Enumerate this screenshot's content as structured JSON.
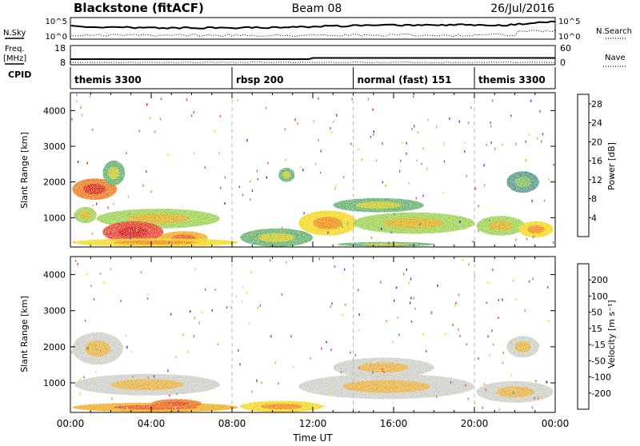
{
  "header": {
    "radar": "Blackstone (fitACF)",
    "beam": "Beam 08",
    "date": "26/Jul/2016"
  },
  "top_panels": {
    "nsky_label": "N.Sky",
    "nsky_ticks": [
      "10^5",
      "10^0"
    ],
    "nsearch_label": "N.Search",
    "nsearch_ticks": [
      "10^5",
      "10^0"
    ],
    "freq_label": "Freq.",
    "freq_unit": "[MHz]",
    "freq_ticks": [
      "18",
      "8"
    ],
    "nave_label": "Nave",
    "nave_ticks": [
      "60",
      "0"
    ],
    "cpid_label": "CPID"
  },
  "modes": [
    {
      "label": "themis 3300",
      "start_hour": 0
    },
    {
      "label": "rbsp 200",
      "start_hour": 8
    },
    {
      "label": "normal (fast) 151",
      "start_hour": 14
    },
    {
      "label": "themis 3300",
      "start_hour": 20
    }
  ],
  "time_axis": {
    "label": "Time UT",
    "ticks": [
      "00:00",
      "04:00",
      "08:00",
      "12:00",
      "16:00",
      "20:00",
      "00:00"
    ],
    "range_hours": [
      0,
      24
    ]
  },
  "chart_data": [
    {
      "type": "heatmap",
      "title": "",
      "xlabel": "",
      "ylabel": "Slant Range [km]",
      "y_ticks": [
        "1000",
        "2000",
        "3000",
        "4000"
      ],
      "xlim_hours": [
        0,
        24
      ],
      "ylim_km": [
        180,
        4500
      ],
      "colorbar": {
        "label": "Power [dB]",
        "ticks": [
          "4",
          "8",
          "12",
          "16",
          "20",
          "24",
          "28"
        ],
        "range": [
          0,
          30
        ],
        "colors": [
          "#1414e6",
          "#2f5fb4",
          "#3d8a78",
          "#4ea55a",
          "#8fcb3a",
          "#f2d200",
          "#f3a000",
          "#ee6600",
          "#e62a14",
          "#cc0000"
        ]
      },
      "regions": [
        {
          "t0": 0.1,
          "t1": 2.3,
          "r0": 1500,
          "r1": 2100,
          "level": 0.75
        },
        {
          "t0": 1.6,
          "t1": 2.7,
          "r0": 1900,
          "r1": 2600,
          "level": 0.35
        },
        {
          "t0": 0.2,
          "t1": 1.3,
          "r0": 850,
          "r1": 1300,
          "level": 0.4
        },
        {
          "t0": 1.3,
          "t1": 7.4,
          "r0": 700,
          "r1": 1250,
          "level": 0.45
        },
        {
          "t0": 1.6,
          "t1": 4.6,
          "r0": 300,
          "r1": 900,
          "level": 0.85
        },
        {
          "t0": 4.4,
          "t1": 6.8,
          "r0": 250,
          "r1": 620,
          "level": 0.7
        },
        {
          "t0": 0.1,
          "t1": 8.3,
          "r0": 190,
          "r1": 420,
          "level": 0.6
        },
        {
          "t0": 8.4,
          "t1": 12.0,
          "r0": 190,
          "r1": 700,
          "level": 0.3
        },
        {
          "t0": 10.3,
          "t1": 11.1,
          "r0": 2000,
          "r1": 2400,
          "level": 0.3
        },
        {
          "t0": 11.3,
          "t1": 14.2,
          "r0": 500,
          "r1": 1200,
          "level": 0.5
        },
        {
          "t0": 13.0,
          "t1": 17.5,
          "r0": 1150,
          "r1": 1550,
          "level": 0.35
        },
        {
          "t0": 14.0,
          "t1": 20.0,
          "r0": 550,
          "r1": 1150,
          "level": 0.4
        },
        {
          "t0": 20.1,
          "t1": 22.5,
          "r0": 500,
          "r1": 1050,
          "level": 0.45
        },
        {
          "t0": 22.2,
          "t1": 23.9,
          "r0": 450,
          "r1": 900,
          "level": 0.55
        },
        {
          "t0": 21.6,
          "t1": 23.2,
          "r0": 1700,
          "r1": 2300,
          "level": 0.25
        },
        {
          "t0": 13.2,
          "t1": 18.0,
          "r0": 190,
          "r1": 320,
          "level": 0.3
        }
      ]
    },
    {
      "type": "heatmap",
      "title": "",
      "xlabel": "Time UT",
      "ylabel": "Slant Range [km]",
      "y_ticks": [
        "1000",
        "2000",
        "3000",
        "4000"
      ],
      "xlim_hours": [
        0,
        24
      ],
      "ylim_km": [
        180,
        4500
      ],
      "colorbar": {
        "label": "Velocity [m s⁻¹]",
        "ticks": [
          "200",
          "100",
          "50",
          "15",
          "-15",
          "-50",
          "-100",
          "-200"
        ],
        "colors": [
          "#0a1ed2",
          "#1e64b4",
          "#2f8a5a",
          "#5cbc32",
          "#c8c8c0",
          "#f2d200",
          "#f0a000",
          "#ec6400",
          "#e62814"
        ]
      },
      "regions": [
        {
          "t0": 0.1,
          "t1": 2.6,
          "r0": 1500,
          "r1": 2400,
          "level": 0.47
        },
        {
          "t0": 0.2,
          "t1": 7.4,
          "r0": 650,
          "r1": 1250,
          "level": 0.47
        },
        {
          "t0": 0.1,
          "t1": 8.3,
          "r0": 190,
          "r1": 450,
          "level": 0.78
        },
        {
          "t0": 4.0,
          "t1": 6.5,
          "r0": 300,
          "r1": 550,
          "level": 0.9
        },
        {
          "t0": 8.4,
          "t1": 12.5,
          "r0": 190,
          "r1": 500,
          "level": 0.6
        },
        {
          "t0": 11.3,
          "t1": 20.0,
          "r0": 550,
          "r1": 1250,
          "level": 0.47
        },
        {
          "t0": 13.0,
          "t1": 18.0,
          "r0": 1150,
          "r1": 1700,
          "level": 0.47
        },
        {
          "t0": 20.1,
          "t1": 23.9,
          "r0": 450,
          "r1": 1050,
          "level": 0.47
        },
        {
          "t0": 21.6,
          "t1": 23.2,
          "r0": 1700,
          "r1": 2300,
          "level": 0.47
        }
      ]
    }
  ]
}
